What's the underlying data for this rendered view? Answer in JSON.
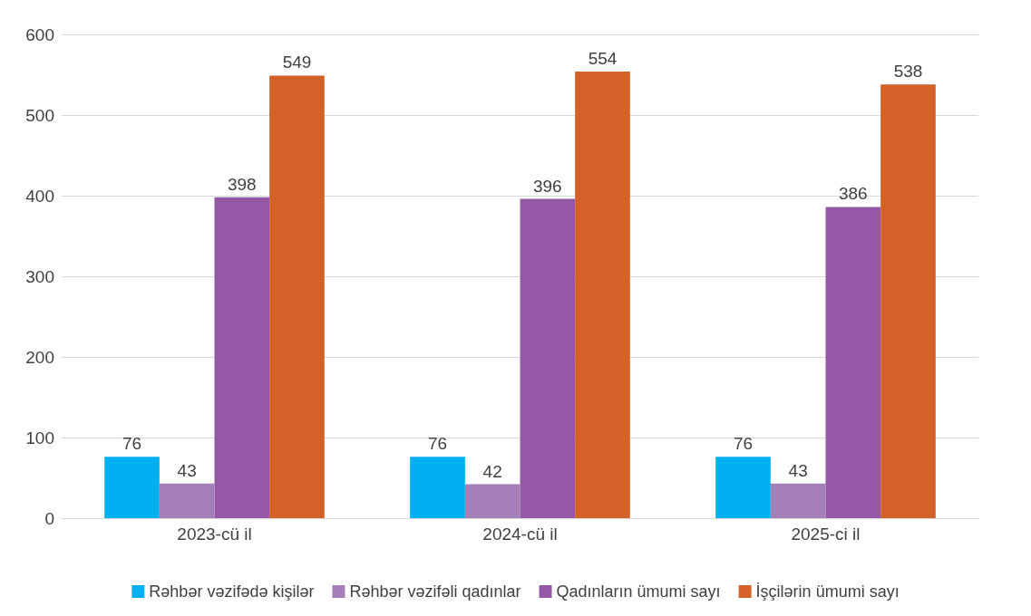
{
  "chart_data": {
    "type": "bar",
    "categories": [
      "2023-cü il",
      "2024-cü il",
      "2025-ci il"
    ],
    "series": [
      {
        "name": "Rəhbər vəzifədə kişilər",
        "color": "#00b0f0",
        "values": [
          76,
          76,
          76
        ]
      },
      {
        "name": "Rəhbər vəzifəli qadınlar",
        "color": "#a57fb8",
        "values": [
          43,
          42,
          43
        ]
      },
      {
        "name": "Qadınların ümumi sayı",
        "color": "#9558a6",
        "values": [
          398,
          396,
          386
        ]
      },
      {
        "name": "İşçilərin ümumi sayı",
        "color": "#d46127",
        "values": [
          549,
          554,
          538
        ]
      }
    ],
    "ylim": [
      0,
      600
    ],
    "yticks": [
      0,
      100,
      200,
      300,
      400,
      500,
      600
    ],
    "grid": "y",
    "legend": "bottom",
    "data_labels": true
  }
}
